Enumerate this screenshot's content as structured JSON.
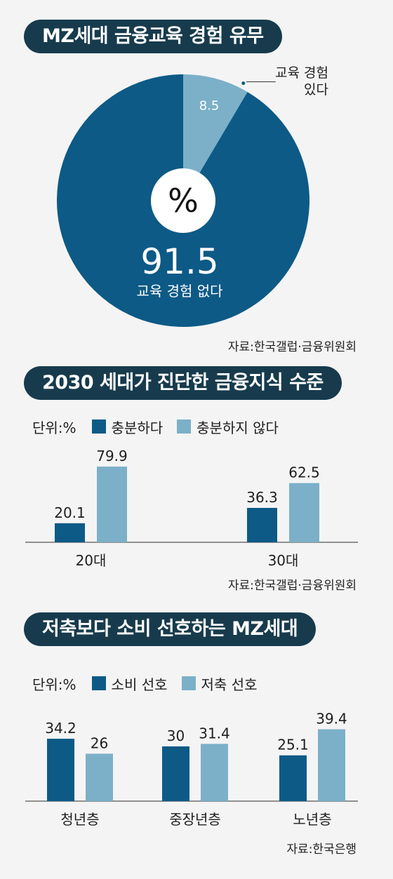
{
  "colors": {
    "dark": "#0d5a86",
    "light": "#7bb0c8",
    "title_bg": "#173b4d"
  },
  "section1": {
    "title": "MZ세대 금융교육 경험 유무",
    "source": "자료:한국갤럽·금융위원회",
    "center_symbol": "%"
  },
  "section2": {
    "title": "2030 세대가 진단한 금융지식 수준",
    "unit": "단위:%",
    "source": "자료:한국갤럽·금융위원회"
  },
  "section3": {
    "title": "저축보다 소비 선호하는 MZ세대",
    "unit": "단위:%",
    "source": "자료:한국은행"
  },
  "chart_data": [
    {
      "type": "pie",
      "title": "MZ세대 금융교육 경험 유무",
      "slices": [
        {
          "label": "교육 경험 없다",
          "value": 91.5,
          "display": "91.5",
          "color": "#0d5a86"
        },
        {
          "label_lines": [
            "교육 경험",
            "있다"
          ],
          "value": 8.5,
          "display": "8.5",
          "color": "#7bb0c8"
        }
      ]
    },
    {
      "type": "bar",
      "title": "2030 세대가 진단한 금융지식 수준",
      "categories": [
        "20대",
        "30대"
      ],
      "series": [
        {
          "name": "충분하다",
          "values": [
            20.1,
            36.3
          ],
          "labels": [
            "20.1",
            "36.3"
          ],
          "color": "#0d5a86"
        },
        {
          "name": "충분하지 않다",
          "values": [
            79.9,
            62.5
          ],
          "labels": [
            "79.9",
            "62.5"
          ],
          "color": "#7bb0c8"
        }
      ]
    },
    {
      "type": "bar",
      "title": "저축보다 소비 선호하는 MZ세대",
      "categories": [
        "청년층",
        "중장년층",
        "노년층"
      ],
      "series": [
        {
          "name": "소비 선호",
          "values": [
            34.2,
            30,
            25.1
          ],
          "labels": [
            "34.2",
            "30",
            "25.1"
          ],
          "color": "#0d5a86"
        },
        {
          "name": "저축 선호",
          "values": [
            26,
            31.4,
            39.4
          ],
          "labels": [
            "26",
            "31.4",
            "39.4"
          ],
          "color": "#7bb0c8"
        }
      ]
    }
  ]
}
